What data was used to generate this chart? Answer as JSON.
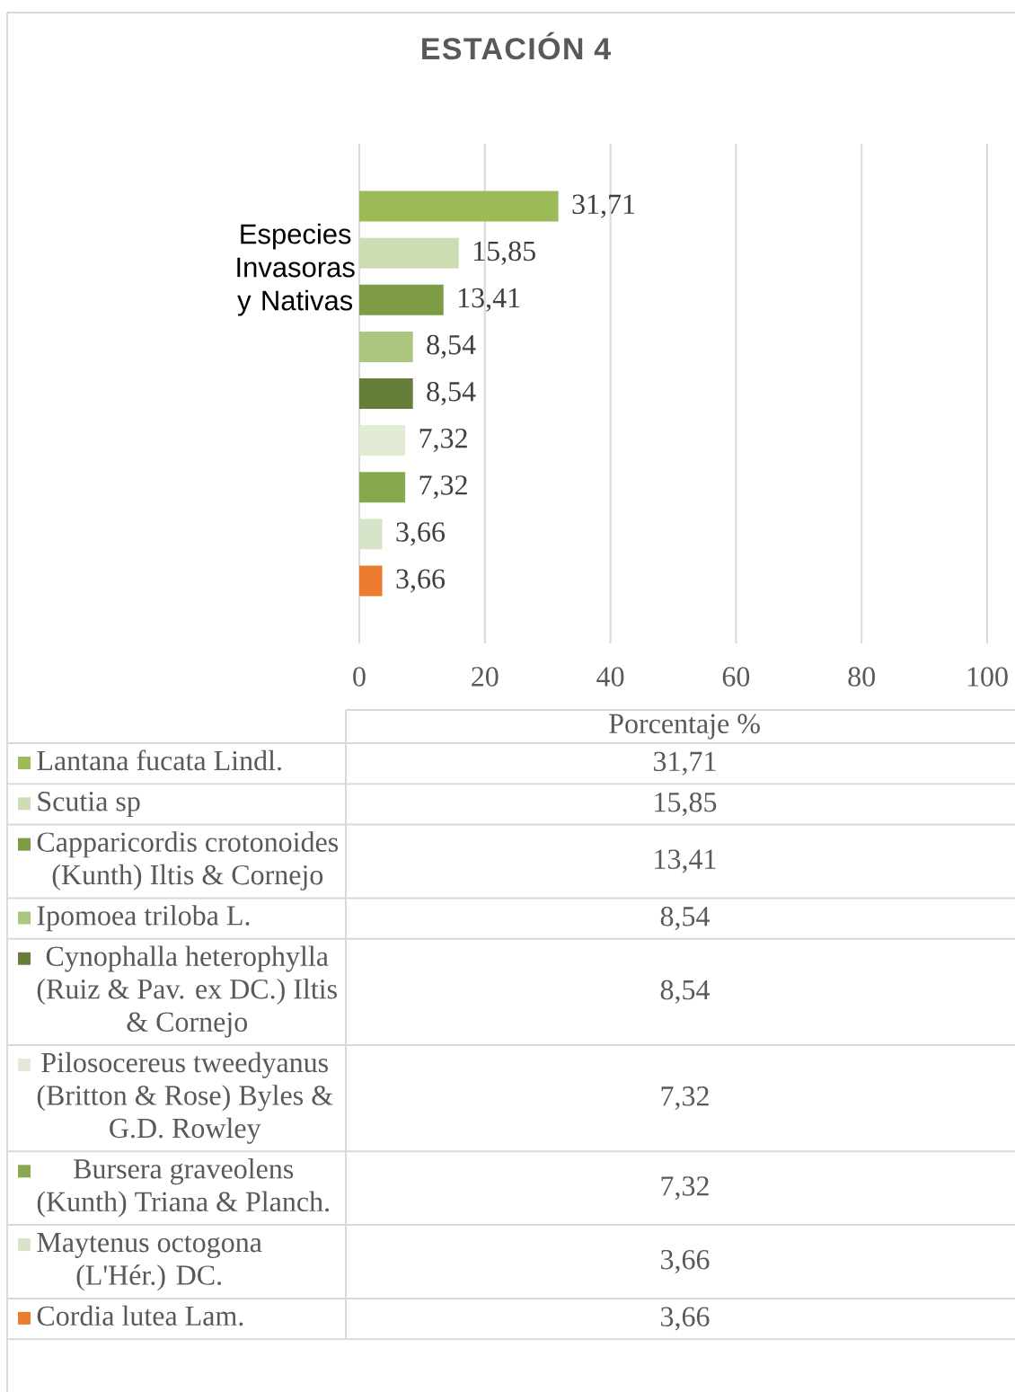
{
  "chart_data": {
    "type": "bar",
    "orientation": "horizontal",
    "title": "ESTACIÓN 4",
    "xlabel": "Porcentaje %",
    "ylabel": "Especies Invasoras y Nativas",
    "categories": [
      null
    ],
    "series": [
      {
        "name": "Lantana fucata Lindl.",
        "color": "#9bbb59",
        "values": [
          31.71
        ],
        "value_labels": [
          "31,71"
        ]
      },
      {
        "name": "Scutia sp",
        "color": "#cddcb3",
        "values": [
          15.85
        ],
        "value_labels": [
          "15,85"
        ]
      },
      {
        "name": "Capparicordis crotonoides (Kunth) Iltis & Cornejo",
        "color": "#7d9b45",
        "values": [
          13.41
        ],
        "value_labels": [
          "13,41"
        ]
      },
      {
        "name": "Ipomoea triloba L.",
        "color": "#abc67e",
        "values": [
          8.54
        ],
        "value_labels": [
          "8,54"
        ]
      },
      {
        "name": "Cynophalla heterophylla (Ruiz & Pav. ex DC.) Iltis & Cornejo",
        "color": "#677d3a",
        "values": [
          8.54
        ],
        "value_labels": [
          "8,54"
        ]
      },
      {
        "name": "Pilosocereus tweedyanus (Britton & Rose) Byles & G.D. Rowley",
        "color": "#e2ebd6",
        "values": [
          7.32
        ],
        "value_labels": [
          "7,32"
        ]
      },
      {
        "name": "Bursera graveolens (Kunth) Triana & Planch.",
        "color": "#87a84c",
        "values": [
          7.32
        ],
        "value_labels": [
          "7,32"
        ]
      },
      {
        "name": "Maytenus octogona (L'Hér.) DC.",
        "color": "#d8e4c9",
        "values": [
          3.66
        ],
        "value_labels": [
          "3,66"
        ]
      },
      {
        "name": "Cordia lutea Lam.",
        "color": "#ec7c30",
        "values": [
          3.66
        ],
        "value_labels": [
          "3,66"
        ]
      }
    ],
    "xlim": [
      0,
      100
    ],
    "xticks": [
      0,
      20,
      40,
      60,
      80,
      100
    ],
    "grid": "x",
    "legend": "bottom"
  }
}
